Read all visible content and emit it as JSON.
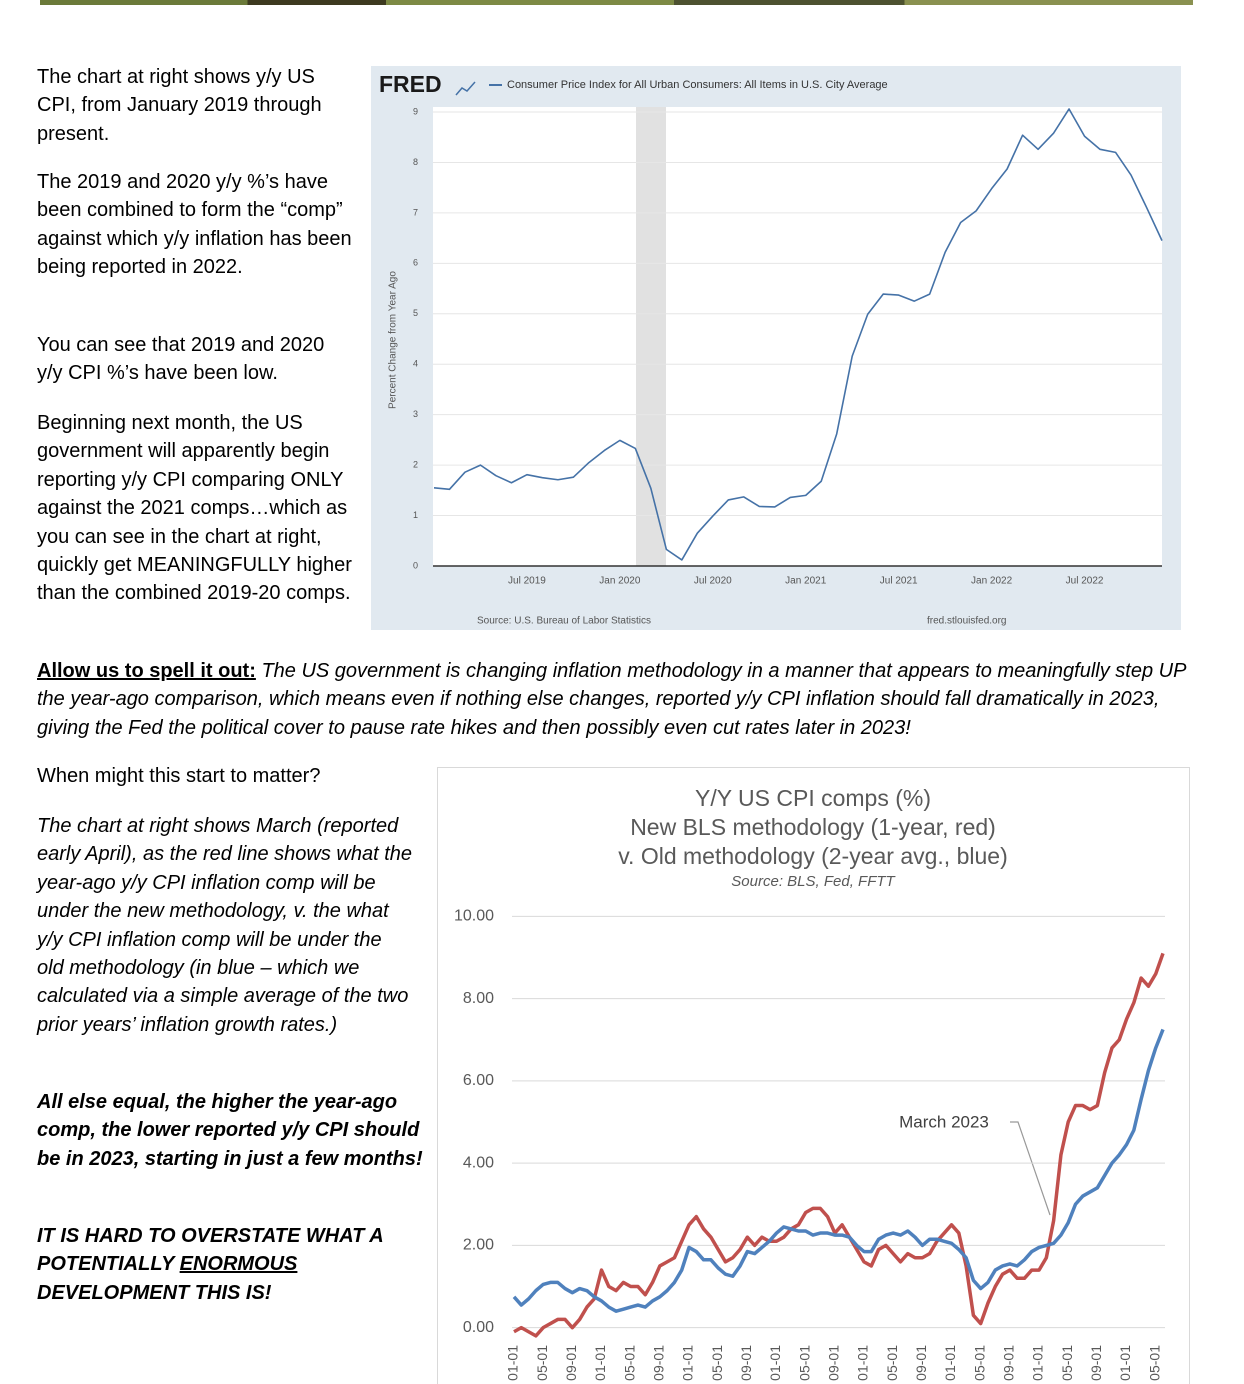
{
  "intro": [
    "The chart at right shows y/y US CPI, from January 2019 through present.",
    "The 2019 and 2020 y/y %’s have been combined to form the “comp” against which y/y inflation has been being reported in 2022.",
    "You can see that 2019 and 2020 y/y CPI %’s have been low.",
    "Beginning next month, the US government will apparently begin reporting y/y CPI comparing ONLY against the 2021 comps…which as you can see in the chart at right, quickly get MEANINGFULLY higher than the combined 2019-20 comps."
  ],
  "callout": {
    "lead": "Allow us to spell it out:",
    "body": " The US government is changing inflation methodology in a manner that appears to meaningfully step UP the year-ago comparison, which means even if nothing else changes, reported y/y CPI inflation should fall dramatically in 2023, giving the Fed the political cover to pause rate hikes and then possibly even cut rates later in 2023!"
  },
  "question": "When might this start to matter?",
  "explain": "The chart at right shows March (reported early April), as the red line shows what the year-ago y/y CPI inflation comp will be under the new methodology, v. the what y/y CPI inflation comp will be under the old methodology (in blue – which we calculated via a simple average of the two prior years’ inflation growth rates.)",
  "claim": "All else equal, the higher the year-ago comp, the lower reported y/y CPI should be in 2023, starting in just a few months!",
  "closing": [
    "IT IS HARD TO OVERSTATE WHAT A POTENTIALLY ",
    "ENORMOUS",
    " DEVELOPMENT THIS IS!"
  ],
  "chart_data": [
    {
      "type": "line",
      "logo": "FRED",
      "y_label": "Percent Change from Year Ago",
      "source": "Source: U.S. Bureau of Labor Statistics",
      "url": "fred.stlouisfed.org",
      "grid": true,
      "x": [
        "2019-01",
        "2019-02",
        "2019-03",
        "2019-04",
        "2019-05",
        "2019-06",
        "2019-07",
        "2019-08",
        "2019-09",
        "2019-10",
        "2019-11",
        "2019-12",
        "2020-01",
        "2020-02",
        "2020-03",
        "2020-04",
        "2020-05",
        "2020-06",
        "2020-07",
        "2020-08",
        "2020-09",
        "2020-10",
        "2020-11",
        "2020-12",
        "2021-01",
        "2021-02",
        "2021-03",
        "2021-04",
        "2021-05",
        "2021-06",
        "2021-07",
        "2021-08",
        "2021-09",
        "2021-10",
        "2021-11",
        "2021-12",
        "2022-01",
        "2022-02",
        "2022-03",
        "2022-04",
        "2022-05",
        "2022-06",
        "2022-07",
        "2022-08",
        "2022-09",
        "2022-10",
        "2022-11",
        "2022-12"
      ],
      "series": [
        {
          "name": "Consumer Price Index for All Urban Consumers: All Items in U.S. City Average",
          "color": "#4572a7",
          "values": [
            1.55,
            1.52,
            1.86,
            2.0,
            1.79,
            1.65,
            1.81,
            1.75,
            1.71,
            1.76,
            2.05,
            2.29,
            2.49,
            2.33,
            1.54,
            0.33,
            0.12,
            0.65,
            0.99,
            1.31,
            1.37,
            1.18,
            1.17,
            1.36,
            1.4,
            1.68,
            2.62,
            4.16,
            4.99,
            5.39,
            5.37,
            5.25,
            5.39,
            6.22,
            6.81,
            7.04,
            7.48,
            7.87,
            8.54,
            8.26,
            8.58,
            9.06,
            8.52,
            8.26,
            8.2,
            7.75,
            7.11,
            6.45
          ]
        }
      ],
      "ylim": [
        0,
        9
      ],
      "yticks": [
        0,
        1,
        2,
        3,
        4,
        5,
        6,
        7,
        8,
        9
      ],
      "xticks": [
        {
          "value": "2019-07",
          "label": "Jul 2019"
        },
        {
          "value": "2020-01",
          "label": "Jan 2020"
        },
        {
          "value": "2020-07",
          "label": "Jul 2020"
        },
        {
          "value": "2021-01",
          "label": "Jan 2021"
        },
        {
          "value": "2021-07",
          "label": "Jul 2021"
        },
        {
          "value": "2022-01",
          "label": "Jan 2022"
        },
        {
          "value": "2022-07",
          "label": "Jul 2022"
        }
      ]
    },
    {
      "type": "line",
      "title": [
        "Y/Y US CPI comps (%)",
        "New BLS methodology (1-year, red)",
        "v. Old methodology (2-year avg., blue)"
      ],
      "subtitle": "Source: BLS, Fed, FFTT",
      "annotation": "March 2023",
      "grid": true,
      "categories": [
        "01-01",
        null,
        null,
        null,
        "05-01",
        null,
        null,
        null,
        "09-01",
        null,
        null,
        null,
        "01-01",
        null,
        null,
        null,
        "05-01",
        null,
        null,
        null,
        "09-01",
        null,
        null,
        null,
        "01-01",
        null,
        null,
        null,
        "05-01",
        null,
        null,
        null,
        "09-01",
        null,
        null,
        null,
        "01-01",
        null,
        null,
        null,
        "05-01",
        null,
        null,
        null,
        "09-01",
        null,
        null,
        null,
        "01-01",
        null,
        null,
        null,
        "05-01",
        null,
        null,
        null,
        "09-01",
        null,
        null,
        null,
        "01-01",
        null,
        null,
        null,
        "05-01",
        null,
        null,
        null,
        "09-01",
        null,
        null,
        null,
        "01-01",
        null,
        null,
        null,
        "05-01",
        null,
        null,
        null,
        "09-01",
        null,
        null,
        null,
        "01-01",
        null,
        null,
        null,
        "05-01",
        null
      ],
      "series": [
        {
          "name": "New BLS methodology (1-year)",
          "color": "#c0504d",
          "values": [
            -0.1,
            0.0,
            -0.1,
            -0.2,
            0.0,
            0.1,
            0.2,
            0.2,
            0.0,
            0.2,
            0.5,
            0.7,
            1.4,
            1.0,
            0.9,
            1.1,
            1.0,
            1.0,
            0.8,
            1.1,
            1.5,
            1.6,
            1.7,
            2.1,
            2.5,
            2.7,
            2.4,
            2.2,
            1.9,
            1.6,
            1.7,
            1.9,
            2.2,
            2.0,
            2.2,
            2.1,
            2.1,
            2.2,
            2.4,
            2.5,
            2.8,
            2.9,
            2.9,
            2.7,
            2.3,
            2.5,
            2.2,
            1.9,
            1.6,
            1.5,
            1.9,
            2.0,
            1.8,
            1.6,
            1.8,
            1.7,
            1.7,
            1.8,
            2.1,
            2.3,
            2.5,
            2.3,
            1.5,
            0.3,
            0.1,
            0.6,
            1.0,
            1.3,
            1.4,
            1.2,
            1.2,
            1.4,
            1.4,
            1.7,
            2.6,
            4.2,
            5.0,
            5.4,
            5.4,
            5.3,
            5.4,
            6.2,
            6.8,
            7.0,
            7.5,
            7.9,
            8.5,
            8.3,
            8.6,
            9.1
          ]
        },
        {
          "name": "Old methodology (2-year avg.)",
          "color": "#4f81bd",
          "values": [
            0.75,
            0.55,
            0.7,
            0.9,
            1.05,
            1.1,
            1.1,
            0.95,
            0.85,
            0.95,
            0.9,
            0.75,
            0.65,
            0.5,
            0.4,
            0.45,
            0.5,
            0.55,
            0.5,
            0.65,
            0.75,
            0.9,
            1.1,
            1.4,
            1.95,
            1.85,
            1.65,
            1.65,
            1.45,
            1.3,
            1.25,
            1.5,
            1.85,
            1.8,
            1.95,
            2.1,
            2.3,
            2.45,
            2.4,
            2.35,
            2.35,
            2.25,
            2.3,
            2.3,
            2.25,
            2.25,
            2.2,
            2.0,
            1.85,
            1.85,
            2.15,
            2.25,
            2.3,
            2.25,
            2.35,
            2.2,
            2.0,
            2.15,
            2.15,
            2.1,
            2.05,
            1.9,
            1.7,
            1.15,
            0.95,
            1.1,
            1.4,
            1.5,
            1.55,
            1.5,
            1.65,
            1.85,
            1.95,
            2.0,
            2.05,
            2.25,
            2.55,
            3.0,
            3.2,
            3.3,
            3.4,
            3.7,
            4.0,
            4.2,
            4.45,
            4.8,
            5.55,
            6.25,
            6.8,
            7.25
          ]
        }
      ],
      "ylim": [
        -0.3,
        10.3
      ],
      "yticks": [
        {
          "value": 0,
          "label": "0.00"
        },
        {
          "value": 2,
          "label": "2.00"
        },
        {
          "value": 4,
          "label": "4.00"
        },
        {
          "value": 6,
          "label": "6.00"
        },
        {
          "value": 8,
          "label": "8.00"
        },
        {
          "value": 10,
          "label": "10.00"
        }
      ]
    }
  ]
}
